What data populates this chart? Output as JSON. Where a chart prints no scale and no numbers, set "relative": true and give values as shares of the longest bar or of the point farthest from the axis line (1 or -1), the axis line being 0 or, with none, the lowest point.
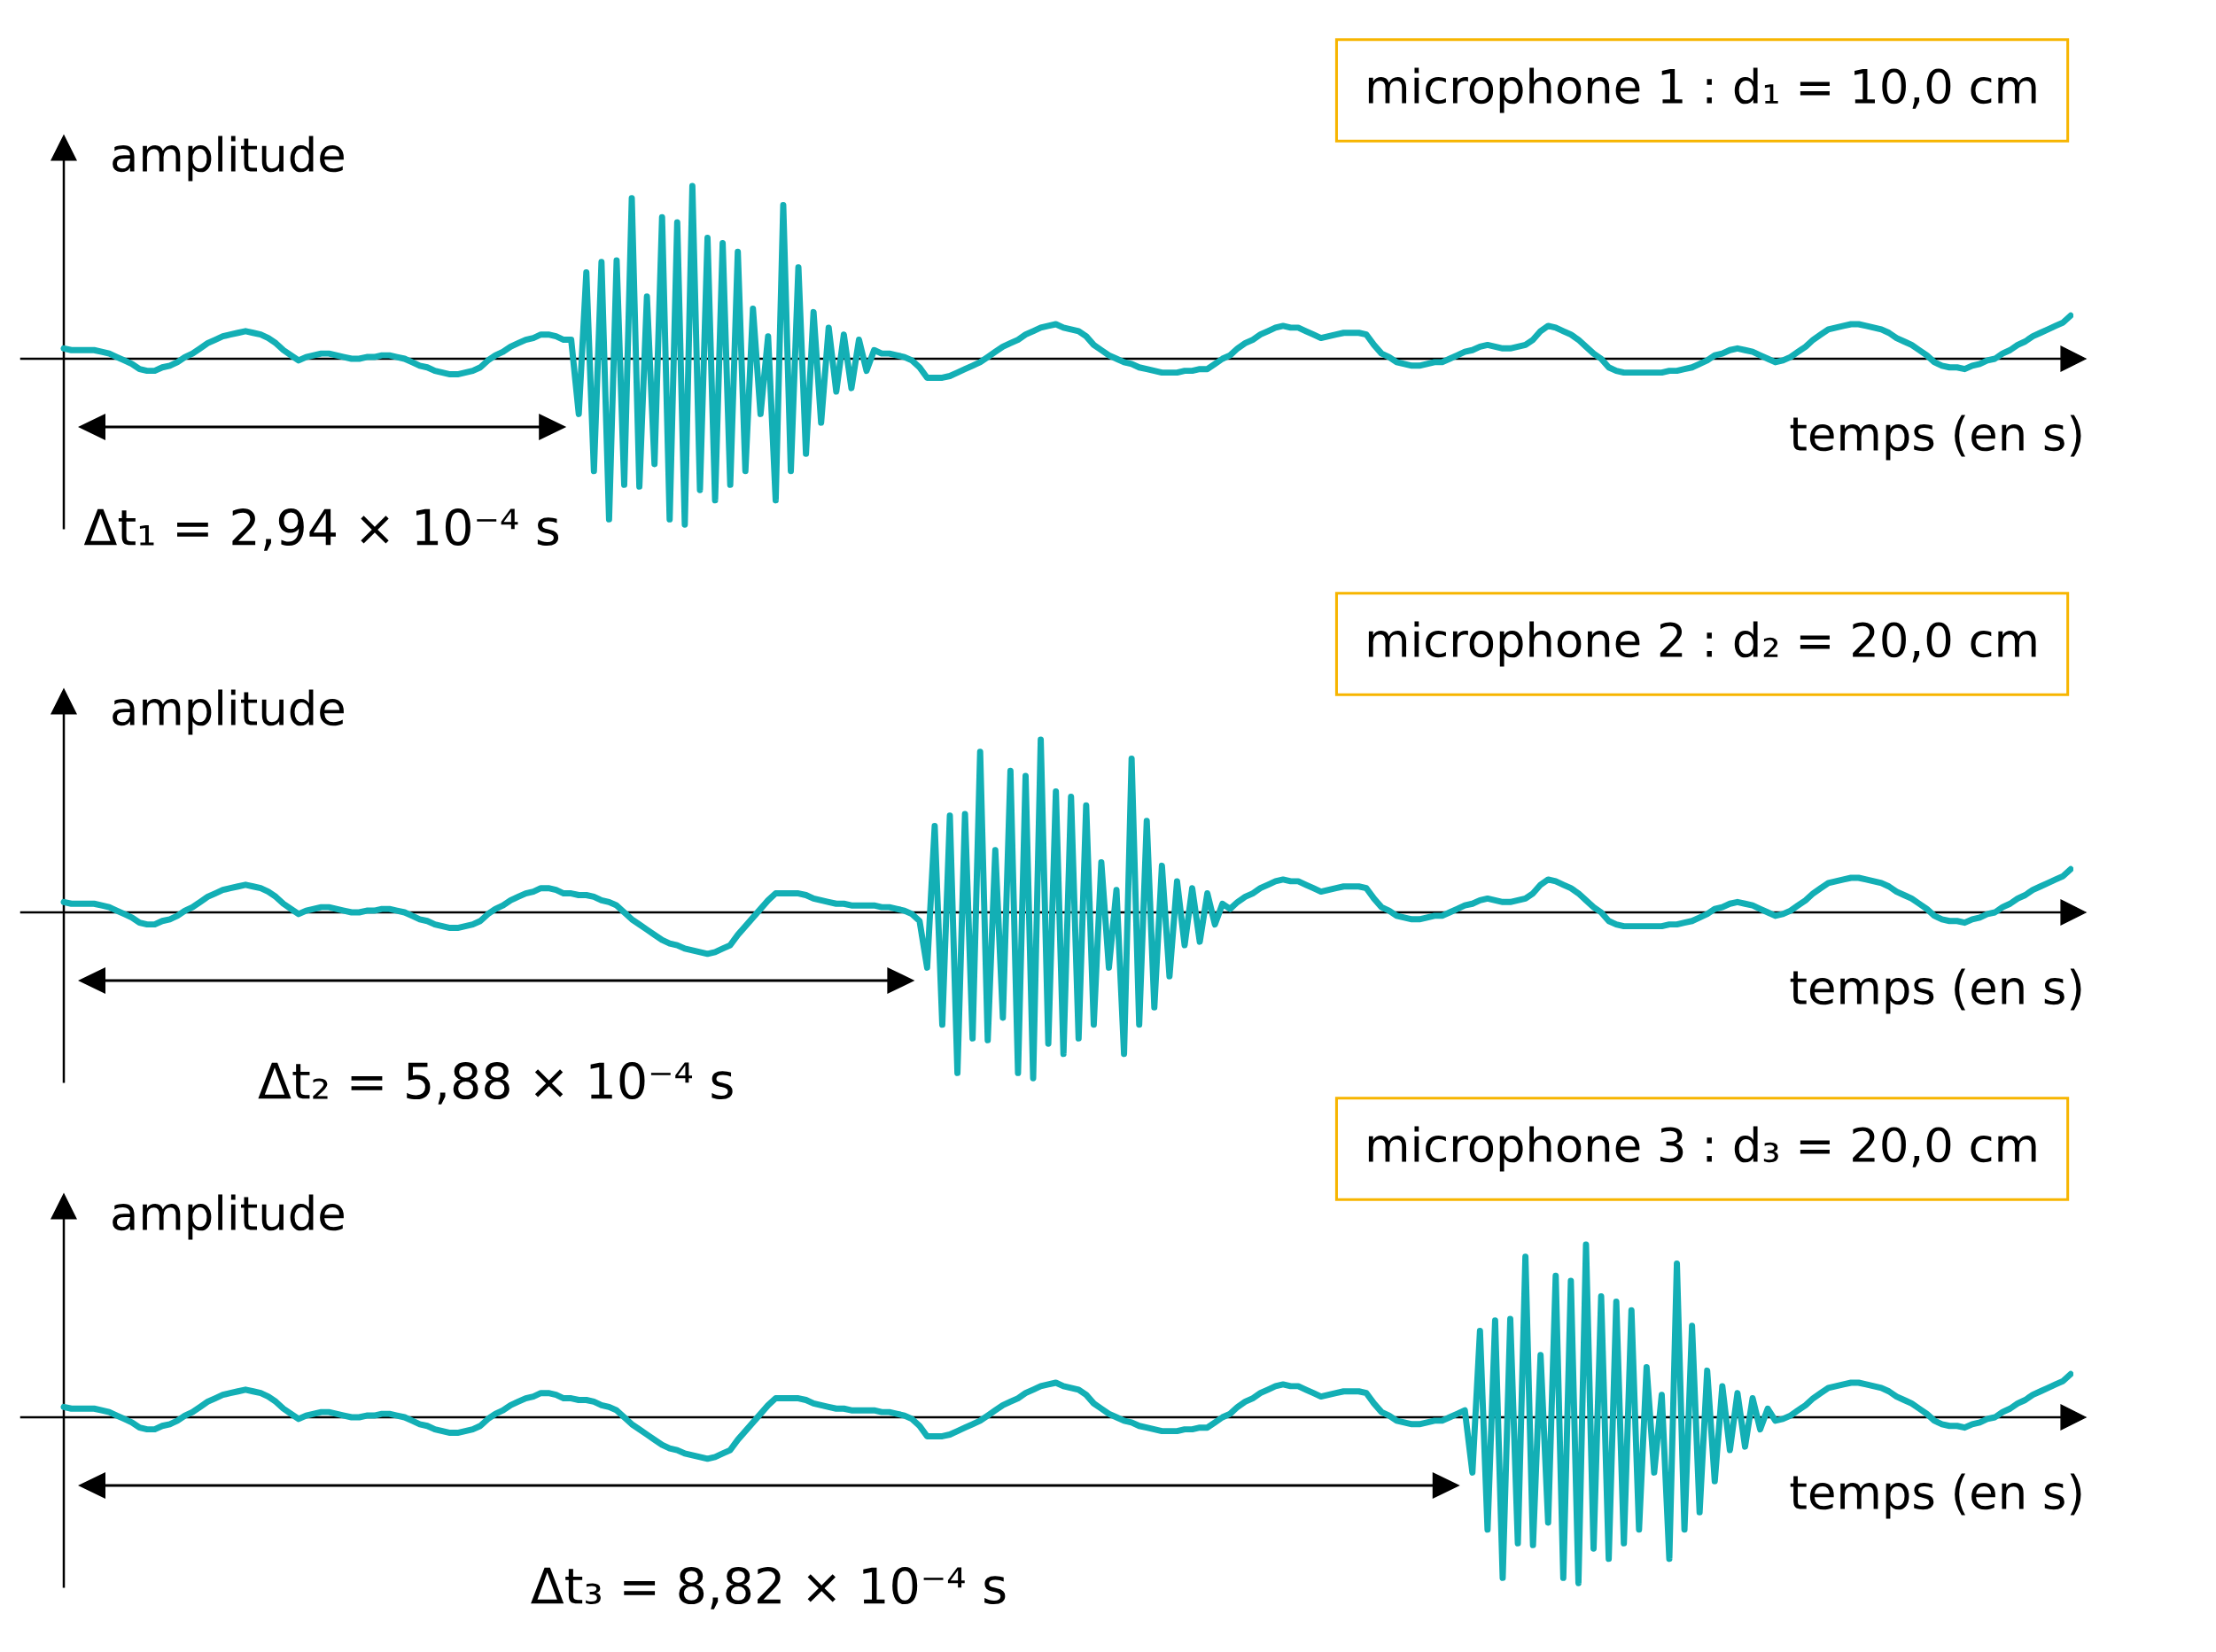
{
  "chart_data": [
    {
      "type": "line",
      "title": "microphone 1 : d₁ = 10,0 cm",
      "xlabel": "temps (en s)",
      "ylabel": "amplitude",
      "annotations": [
        "Δt₁ = 2,94 × 10⁻⁴ s"
      ],
      "relative": true,
      "tick_labels": false,
      "categories": [
        null,
        null,
        null,
        null,
        null,
        null,
        null,
        null,
        null,
        null,
        null,
        null,
        null,
        null,
        null,
        null,
        null,
        null,
        null,
        null,
        null,
        null,
        null,
        null,
        null,
        null,
        null,
        null,
        null,
        null,
        null,
        null,
        null,
        null,
        null,
        null,
        null,
        null,
        null,
        null,
        null,
        null,
        null,
        null,
        null,
        null,
        null,
        null,
        null,
        null,
        null,
        null,
        null,
        null,
        null,
        null,
        null,
        null,
        null,
        null,
        null,
        null,
        null,
        null,
        null,
        null,
        null,
        null,
        null,
        null,
        null,
        null,
        null,
        null,
        null,
        null,
        null,
        null,
        null,
        null,
        null,
        null,
        null,
        null,
        null,
        null,
        null,
        null,
        null,
        null,
        null,
        null,
        null,
        null,
        null,
        null,
        null,
        null,
        null,
        null,
        null,
        null,
        null,
        null,
        null,
        null,
        null,
        null,
        null,
        null,
        null,
        null,
        null,
        null,
        null,
        null,
        null,
        null,
        null,
        null,
        null,
        null,
        null,
        null,
        null,
        null,
        null,
        null,
        null,
        null,
        null,
        null,
        null,
        null,
        null,
        null,
        null,
        null,
        null,
        null,
        null,
        null,
        null,
        null,
        null,
        null,
        null,
        null,
        null,
        null,
        null,
        null,
        null,
        null,
        null,
        null,
        null,
        null,
        null,
        null,
        null,
        null,
        null,
        null,
        null,
        null,
        null,
        null,
        null,
        null,
        null,
        null,
        null,
        null,
        null,
        null,
        null,
        null,
        null,
        null,
        null,
        null,
        null,
        null,
        null,
        null,
        null,
        null,
        null,
        null,
        null,
        null,
        null,
        null,
        null,
        null,
        null,
        null,
        null,
        null,
        null,
        null,
        null,
        null,
        null,
        null,
        null,
        null,
        null,
        null,
        null,
        null,
        null,
        null,
        null,
        null,
        null,
        null,
        null,
        null,
        null,
        null,
        null,
        null,
        null,
        null,
        null,
        null,
        null,
        null,
        null,
        null,
        null,
        null,
        null,
        null,
        null,
        null,
        null,
        null,
        null,
        null,
        null,
        null,
        null,
        null,
        null,
        null,
        null,
        null,
        null,
        null,
        null,
        null,
        null,
        null,
        null,
        null,
        null,
        null,
        null,
        null,
        null,
        null,
        null,
        null
      ],
      "series": [
        {
          "color": "#13afb5",
          "values": [
            0.06,
            0.05,
            0.05,
            0.05,
            0.05,
            0.04,
            0.03,
            0.01,
            -0.01,
            -0.03,
            -0.06,
            -0.07,
            -0.07,
            -0.05,
            -0.04,
            -0.02,
            0.01,
            0.03,
            0.06,
            0.09,
            0.11,
            0.13,
            0.14,
            0.15,
            0.16,
            0.15,
            0.14,
            0.12,
            0.09,
            0.05,
            0.02,
            -0.01,
            0.01,
            0.02,
            0.03,
            0.03,
            0.02,
            0.01,
            0.0,
            0.0,
            0.01,
            0.01,
            0.02,
            0.02,
            0.01,
            0.0,
            -0.02,
            -0.04,
            -0.05,
            -0.07,
            -0.08,
            -0.09,
            -0.09,
            -0.08,
            -0.07,
            -0.05,
            -0.01,
            0.02,
            0.04,
            0.07,
            0.09,
            0.11,
            0.12,
            0.14,
            0.14,
            0.13,
            0.11,
            0.11,
            -0.32,
            0.5,
            -0.65,
            0.56,
            -0.93,
            0.57,
            -0.73,
            0.93,
            -0.74,
            0.36,
            -0.61,
            0.82,
            -0.93,
            0.79,
            -0.96,
            1.0,
            -0.76,
            0.7,
            -0.82,
            0.67,
            -0.73,
            0.62,
            -0.65,
            0.29,
            -0.32,
            0.13,
            -0.82,
            0.89,
            -0.65,
            0.53,
            -0.55,
            0.27,
            -0.37,
            0.18,
            -0.19,
            0.14,
            -0.17,
            0.11,
            -0.07,
            0.05,
            0.03,
            0.03,
            0.02,
            0.01,
            -0.01,
            -0.05,
            -0.11,
            -0.11,
            -0.11,
            -0.1,
            -0.08,
            -0.06,
            -0.04,
            -0.02,
            0.01,
            0.04,
            0.07,
            0.09,
            0.11,
            0.14,
            0.16,
            0.18,
            0.19,
            0.2,
            0.18,
            0.17,
            0.16,
            0.13,
            0.08,
            0.05,
            0.02,
            0.0,
            -0.02,
            -0.03,
            -0.05,
            -0.06,
            -0.07,
            -0.08,
            -0.08,
            -0.08,
            -0.07,
            -0.07,
            -0.06,
            -0.06,
            -0.03,
            0.0,
            0.02,
            0.06,
            0.09,
            0.11,
            0.14,
            0.16,
            0.18,
            0.19,
            0.18,
            0.18,
            0.16,
            0.14,
            0.12,
            0.13,
            0.14,
            0.15,
            0.15,
            0.15,
            0.14,
            0.08,
            0.03,
            0.01,
            -0.02,
            -0.03,
            -0.04,
            -0.04,
            -0.03,
            -0.02,
            -0.02,
            0.0,
            0.02,
            0.04,
            0.05,
            0.07,
            0.08,
            0.07,
            0.06,
            0.06,
            0.07,
            0.08,
            0.11,
            0.16,
            0.19,
            0.18,
            0.16,
            0.14,
            0.11,
            0.07,
            0.03,
            0.0,
            -0.05,
            -0.07,
            -0.08,
            -0.08,
            -0.08,
            -0.08,
            -0.08,
            -0.08,
            -0.07,
            -0.07,
            -0.06,
            -0.05,
            -0.03,
            -0.01,
            0.02,
            0.03,
            0.05,
            0.06,
            0.05,
            0.04,
            0.02,
            0.0,
            -0.02,
            -0.01,
            0.01,
            0.04,
            0.07,
            0.11,
            0.14,
            0.17,
            0.18,
            0.19,
            0.2,
            0.2,
            0.19,
            0.18,
            0.17,
            0.15,
            0.12,
            0.1,
            0.08,
            0.05,
            0.02,
            -0.02,
            -0.04,
            -0.05,
            -0.05,
            -0.06,
            -0.04,
            -0.03,
            -0.01,
            0.0,
            0.03,
            0.05,
            0.08,
            0.1,
            0.13,
            0.15,
            0.17,
            0.19,
            0.21,
            0.25
          ]
        }
      ]
    },
    {
      "type": "line",
      "title": "microphone 2 : d₂ = 20,0 cm",
      "xlabel": "temps (en s)",
      "ylabel": "amplitude",
      "annotations": [
        "Δt₂ = 5,88 × 10⁻⁴ s"
      ],
      "relative": true,
      "tick_labels": false,
      "categories": [
        null,
        null,
        null,
        null,
        null,
        null,
        null,
        null,
        null,
        null,
        null,
        null,
        null,
        null,
        null,
        null,
        null,
        null,
        null,
        null,
        null,
        null,
        null,
        null,
        null,
        null,
        null,
        null,
        null,
        null,
        null,
        null,
        null,
        null,
        null,
        null,
        null,
        null,
        null,
        null,
        null,
        null,
        null,
        null,
        null,
        null,
        null,
        null,
        null,
        null,
        null,
        null,
        null,
        null,
        null,
        null,
        null,
        null,
        null,
        null,
        null,
        null,
        null,
        null,
        null,
        null,
        null,
        null,
        null,
        null,
        null,
        null,
        null,
        null,
        null,
        null,
        null,
        null,
        null,
        null,
        null,
        null,
        null,
        null,
        null,
        null,
        null,
        null,
        null,
        null,
        null,
        null,
        null,
        null,
        null,
        null,
        null,
        null,
        null,
        null,
        null,
        null,
        null,
        null,
        null,
        null,
        null,
        null,
        null,
        null,
        null,
        null,
        null,
        null,
        null,
        null,
        null,
        null,
        null,
        null,
        null,
        null,
        null,
        null,
        null,
        null,
        null,
        null,
        null,
        null,
        null,
        null,
        null,
        null,
        null,
        null,
        null,
        null,
        null,
        null,
        null,
        null,
        null,
        null,
        null,
        null,
        null,
        null,
        null,
        null,
        null,
        null,
        null,
        null,
        null,
        null,
        null,
        null,
        null,
        null,
        null,
        null,
        null,
        null,
        null,
        null,
        null,
        null,
        null,
        null,
        null,
        null,
        null,
        null,
        null,
        null,
        null,
        null,
        null,
        null,
        null,
        null,
        null,
        null,
        null,
        null,
        null,
        null,
        null,
        null,
        null,
        null,
        null,
        null,
        null,
        null,
        null,
        null,
        null,
        null,
        null,
        null,
        null,
        null,
        null,
        null,
        null,
        null,
        null,
        null,
        null,
        null,
        null,
        null,
        null,
        null,
        null,
        null,
        null,
        null,
        null,
        null,
        null,
        null,
        null,
        null,
        null,
        null,
        null,
        null,
        null,
        null,
        null,
        null,
        null,
        null,
        null,
        null,
        null,
        null,
        null,
        null,
        null,
        null,
        null,
        null,
        null,
        null,
        null,
        null,
        null,
        null,
        null,
        null,
        null,
        null,
        null,
        null,
        null,
        null,
        null,
        null,
        null,
        null,
        null,
        null
      ],
      "series": [
        {
          "color": "#13afb5",
          "values": [
            0.06,
            0.05,
            0.05,
            0.05,
            0.05,
            0.04,
            0.03,
            0.01,
            -0.01,
            -0.03,
            -0.06,
            -0.07,
            -0.07,
            -0.05,
            -0.04,
            -0.02,
            0.01,
            0.03,
            0.06,
            0.09,
            0.11,
            0.13,
            0.14,
            0.15,
            0.16,
            0.15,
            0.14,
            0.12,
            0.09,
            0.05,
            0.02,
            -0.01,
            0.01,
            0.02,
            0.03,
            0.03,
            0.02,
            0.01,
            0.0,
            0.0,
            0.01,
            0.01,
            0.02,
            0.02,
            0.01,
            0.0,
            -0.02,
            -0.04,
            -0.05,
            -0.07,
            -0.08,
            -0.09,
            -0.09,
            -0.08,
            -0.07,
            -0.05,
            -0.01,
            0.02,
            0.04,
            0.07,
            0.09,
            0.11,
            0.12,
            0.14,
            0.14,
            0.13,
            0.11,
            0.11,
            0.1,
            0.1,
            0.09,
            0.07,
            0.06,
            0.04,
            0.0,
            -0.04,
            -0.07,
            -0.1,
            -0.13,
            -0.16,
            -0.18,
            -0.19,
            -0.21,
            -0.22,
            -0.23,
            -0.24,
            -0.23,
            -0.21,
            -0.19,
            -0.13,
            -0.08,
            -0.03,
            0.02,
            0.07,
            0.11,
            0.11,
            0.11,
            0.11,
            0.1,
            0.08,
            0.07,
            0.06,
            0.05,
            0.05,
            0.04,
            0.04,
            0.04,
            0.04,
            0.03,
            0.03,
            0.02,
            0.01,
            -0.01,
            -0.05,
            -0.32,
            0.5,
            -0.65,
            0.56,
            -0.93,
            0.57,
            -0.73,
            0.93,
            -0.74,
            0.36,
            -0.61,
            0.82,
            -0.93,
            0.79,
            -0.96,
            1.0,
            -0.76,
            0.7,
            -0.82,
            0.67,
            -0.73,
            0.62,
            -0.65,
            0.29,
            -0.32,
            0.13,
            -0.82,
            0.89,
            -0.65,
            0.53,
            -0.55,
            0.27,
            -0.37,
            0.18,
            -0.19,
            0.14,
            -0.17,
            0.11,
            -0.07,
            0.05,
            0.02,
            0.06,
            0.09,
            0.11,
            0.14,
            0.16,
            0.18,
            0.19,
            0.18,
            0.18,
            0.16,
            0.14,
            0.12,
            0.13,
            0.14,
            0.15,
            0.15,
            0.15,
            0.14,
            0.08,
            0.03,
            0.01,
            -0.02,
            -0.03,
            -0.04,
            -0.04,
            -0.03,
            -0.02,
            -0.02,
            0.0,
            0.02,
            0.04,
            0.05,
            0.07,
            0.08,
            0.07,
            0.06,
            0.06,
            0.07,
            0.08,
            0.11,
            0.16,
            0.19,
            0.18,
            0.16,
            0.14,
            0.11,
            0.07,
            0.03,
            0.0,
            -0.05,
            -0.07,
            -0.08,
            -0.08,
            -0.08,
            -0.08,
            -0.08,
            -0.08,
            -0.07,
            -0.07,
            -0.06,
            -0.05,
            -0.03,
            -0.01,
            0.02,
            0.03,
            0.05,
            0.06,
            0.05,
            0.04,
            0.02,
            0.0,
            -0.02,
            -0.01,
            0.01,
            0.04,
            0.07,
            0.11,
            0.14,
            0.17,
            0.18,
            0.19,
            0.2,
            0.2,
            0.19,
            0.18,
            0.17,
            0.15,
            0.12,
            0.1,
            0.08,
            0.05,
            0.02,
            -0.02,
            -0.04,
            -0.05,
            -0.05,
            -0.06,
            -0.04,
            -0.03,
            -0.01,
            0.0,
            0.03,
            0.05,
            0.08,
            0.1,
            0.13,
            0.15,
            0.17,
            0.19,
            0.21,
            0.25
          ]
        }
      ]
    },
    {
      "type": "line",
      "title": "microphone 3 : d₃ = 20,0 cm",
      "xlabel": "temps (en s)",
      "ylabel": "amplitude",
      "annotations": [
        "Δt₃ = 8,82 × 10⁻⁴ s"
      ],
      "relative": true,
      "tick_labels": false,
      "categories": [
        null,
        null,
        null,
        null,
        null,
        null,
        null,
        null,
        null,
        null,
        null,
        null,
        null,
        null,
        null,
        null,
        null,
        null,
        null,
        null,
        null,
        null,
        null,
        null,
        null,
        null,
        null,
        null,
        null,
        null,
        null,
        null,
        null,
        null,
        null,
        null,
        null,
        null,
        null,
        null,
        null,
        null,
        null,
        null,
        null,
        null,
        null,
        null,
        null,
        null,
        null,
        null,
        null,
        null,
        null,
        null,
        null,
        null,
        null,
        null,
        null,
        null,
        null,
        null,
        null,
        null,
        null,
        null,
        null,
        null,
        null,
        null,
        null,
        null,
        null,
        null,
        null,
        null,
        null,
        null,
        null,
        null,
        null,
        null,
        null,
        null,
        null,
        null,
        null,
        null,
        null,
        null,
        null,
        null,
        null,
        null,
        null,
        null,
        null,
        null,
        null,
        null,
        null,
        null,
        null,
        null,
        null,
        null,
        null,
        null,
        null,
        null,
        null,
        null,
        null,
        null,
        null,
        null,
        null,
        null,
        null,
        null,
        null,
        null,
        null,
        null,
        null,
        null,
        null,
        null,
        null,
        null,
        null,
        null,
        null,
        null,
        null,
        null,
        null,
        null,
        null,
        null,
        null,
        null,
        null,
        null,
        null,
        null,
        null,
        null,
        null,
        null,
        null,
        null,
        null,
        null,
        null,
        null,
        null,
        null,
        null,
        null,
        null,
        null,
        null,
        null,
        null,
        null,
        null,
        null,
        null,
        null,
        null,
        null,
        null,
        null,
        null,
        null,
        null,
        null,
        null,
        null,
        null,
        null,
        null,
        null,
        null,
        null,
        null,
        null,
        null,
        null,
        null,
        null,
        null,
        null,
        null,
        null,
        null,
        null,
        null,
        null,
        null,
        null,
        null,
        null,
        null,
        null,
        null,
        null,
        null,
        null,
        null,
        null,
        null,
        null,
        null,
        null,
        null,
        null,
        null,
        null,
        null,
        null,
        null,
        null,
        null,
        null,
        null,
        null,
        null,
        null,
        null,
        null,
        null,
        null,
        null,
        null,
        null,
        null,
        null,
        null,
        null,
        null,
        null,
        null,
        null,
        null,
        null,
        null,
        null,
        null,
        null,
        null,
        null,
        null,
        null,
        null,
        null,
        null,
        null,
        null,
        null,
        null,
        null,
        null
      ],
      "series": [
        {
          "color": "#13afb5",
          "values": [
            0.06,
            0.05,
            0.05,
            0.05,
            0.05,
            0.04,
            0.03,
            0.01,
            -0.01,
            -0.03,
            -0.06,
            -0.07,
            -0.07,
            -0.05,
            -0.04,
            -0.02,
            0.01,
            0.03,
            0.06,
            0.09,
            0.11,
            0.13,
            0.14,
            0.15,
            0.16,
            0.15,
            0.14,
            0.12,
            0.09,
            0.05,
            0.02,
            -0.01,
            0.01,
            0.02,
            0.03,
            0.03,
            0.02,
            0.01,
            0.0,
            0.0,
            0.01,
            0.01,
            0.02,
            0.02,
            0.01,
            0.0,
            -0.02,
            -0.04,
            -0.05,
            -0.07,
            -0.08,
            -0.09,
            -0.09,
            -0.08,
            -0.07,
            -0.05,
            -0.01,
            0.02,
            0.04,
            0.07,
            0.09,
            0.11,
            0.12,
            0.14,
            0.14,
            0.13,
            0.11,
            0.11,
            0.1,
            0.1,
            0.09,
            0.07,
            0.06,
            0.04,
            0.0,
            -0.04,
            -0.07,
            -0.1,
            -0.13,
            -0.16,
            -0.18,
            -0.19,
            -0.21,
            -0.22,
            -0.23,
            -0.24,
            -0.23,
            -0.21,
            -0.19,
            -0.13,
            -0.08,
            -0.03,
            0.02,
            0.07,
            0.11,
            0.11,
            0.11,
            0.11,
            0.1,
            0.08,
            0.07,
            0.06,
            0.05,
            0.05,
            0.04,
            0.04,
            0.04,
            0.04,
            0.03,
            0.03,
            0.02,
            0.01,
            -0.01,
            -0.05,
            -0.11,
            -0.11,
            -0.11,
            -0.1,
            -0.08,
            -0.06,
            -0.04,
            -0.02,
            0.01,
            0.04,
            0.07,
            0.09,
            0.11,
            0.14,
            0.16,
            0.18,
            0.19,
            0.2,
            0.18,
            0.17,
            0.16,
            0.13,
            0.08,
            0.05,
            0.02,
            0.0,
            -0.02,
            -0.03,
            -0.05,
            -0.06,
            -0.07,
            -0.08,
            -0.08,
            -0.08,
            -0.07,
            -0.07,
            -0.06,
            -0.06,
            -0.03,
            0.0,
            0.02,
            0.06,
            0.09,
            0.11,
            0.14,
            0.16,
            0.18,
            0.19,
            0.18,
            0.18,
            0.16,
            0.14,
            0.12,
            0.13,
            0.14,
            0.15,
            0.15,
            0.15,
            0.14,
            0.08,
            0.03,
            0.01,
            -0.02,
            -0.03,
            -0.04,
            -0.04,
            -0.03,
            -0.02,
            -0.02,
            0.0,
            0.02,
            0.04,
            -0.32,
            0.5,
            -0.65,
            0.56,
            -0.93,
            0.57,
            -0.73,
            0.93,
            -0.74,
            0.36,
            -0.61,
            0.82,
            -0.93,
            0.79,
            -0.96,
            1.0,
            -0.76,
            0.7,
            -0.82,
            0.67,
            -0.73,
            0.62,
            -0.65,
            0.29,
            -0.32,
            0.13,
            -0.82,
            0.89,
            -0.65,
            0.53,
            -0.55,
            0.27,
            -0.37,
            0.18,
            -0.19,
            0.14,
            -0.17,
            0.11,
            -0.07,
            0.05,
            -0.02,
            -0.01,
            0.01,
            0.04,
            0.07,
            0.11,
            0.14,
            0.17,
            0.18,
            0.19,
            0.2,
            0.2,
            0.19,
            0.18,
            0.17,
            0.15,
            0.12,
            0.1,
            0.08,
            0.05,
            0.02,
            -0.02,
            -0.04,
            -0.05,
            -0.05,
            -0.06,
            -0.04,
            -0.03,
            -0.01,
            0.0,
            0.03,
            0.05,
            0.08,
            0.1,
            0.13,
            0.15,
            0.17,
            0.19,
            0.21,
            0.25
          ]
        }
      ]
    }
  ]
}
